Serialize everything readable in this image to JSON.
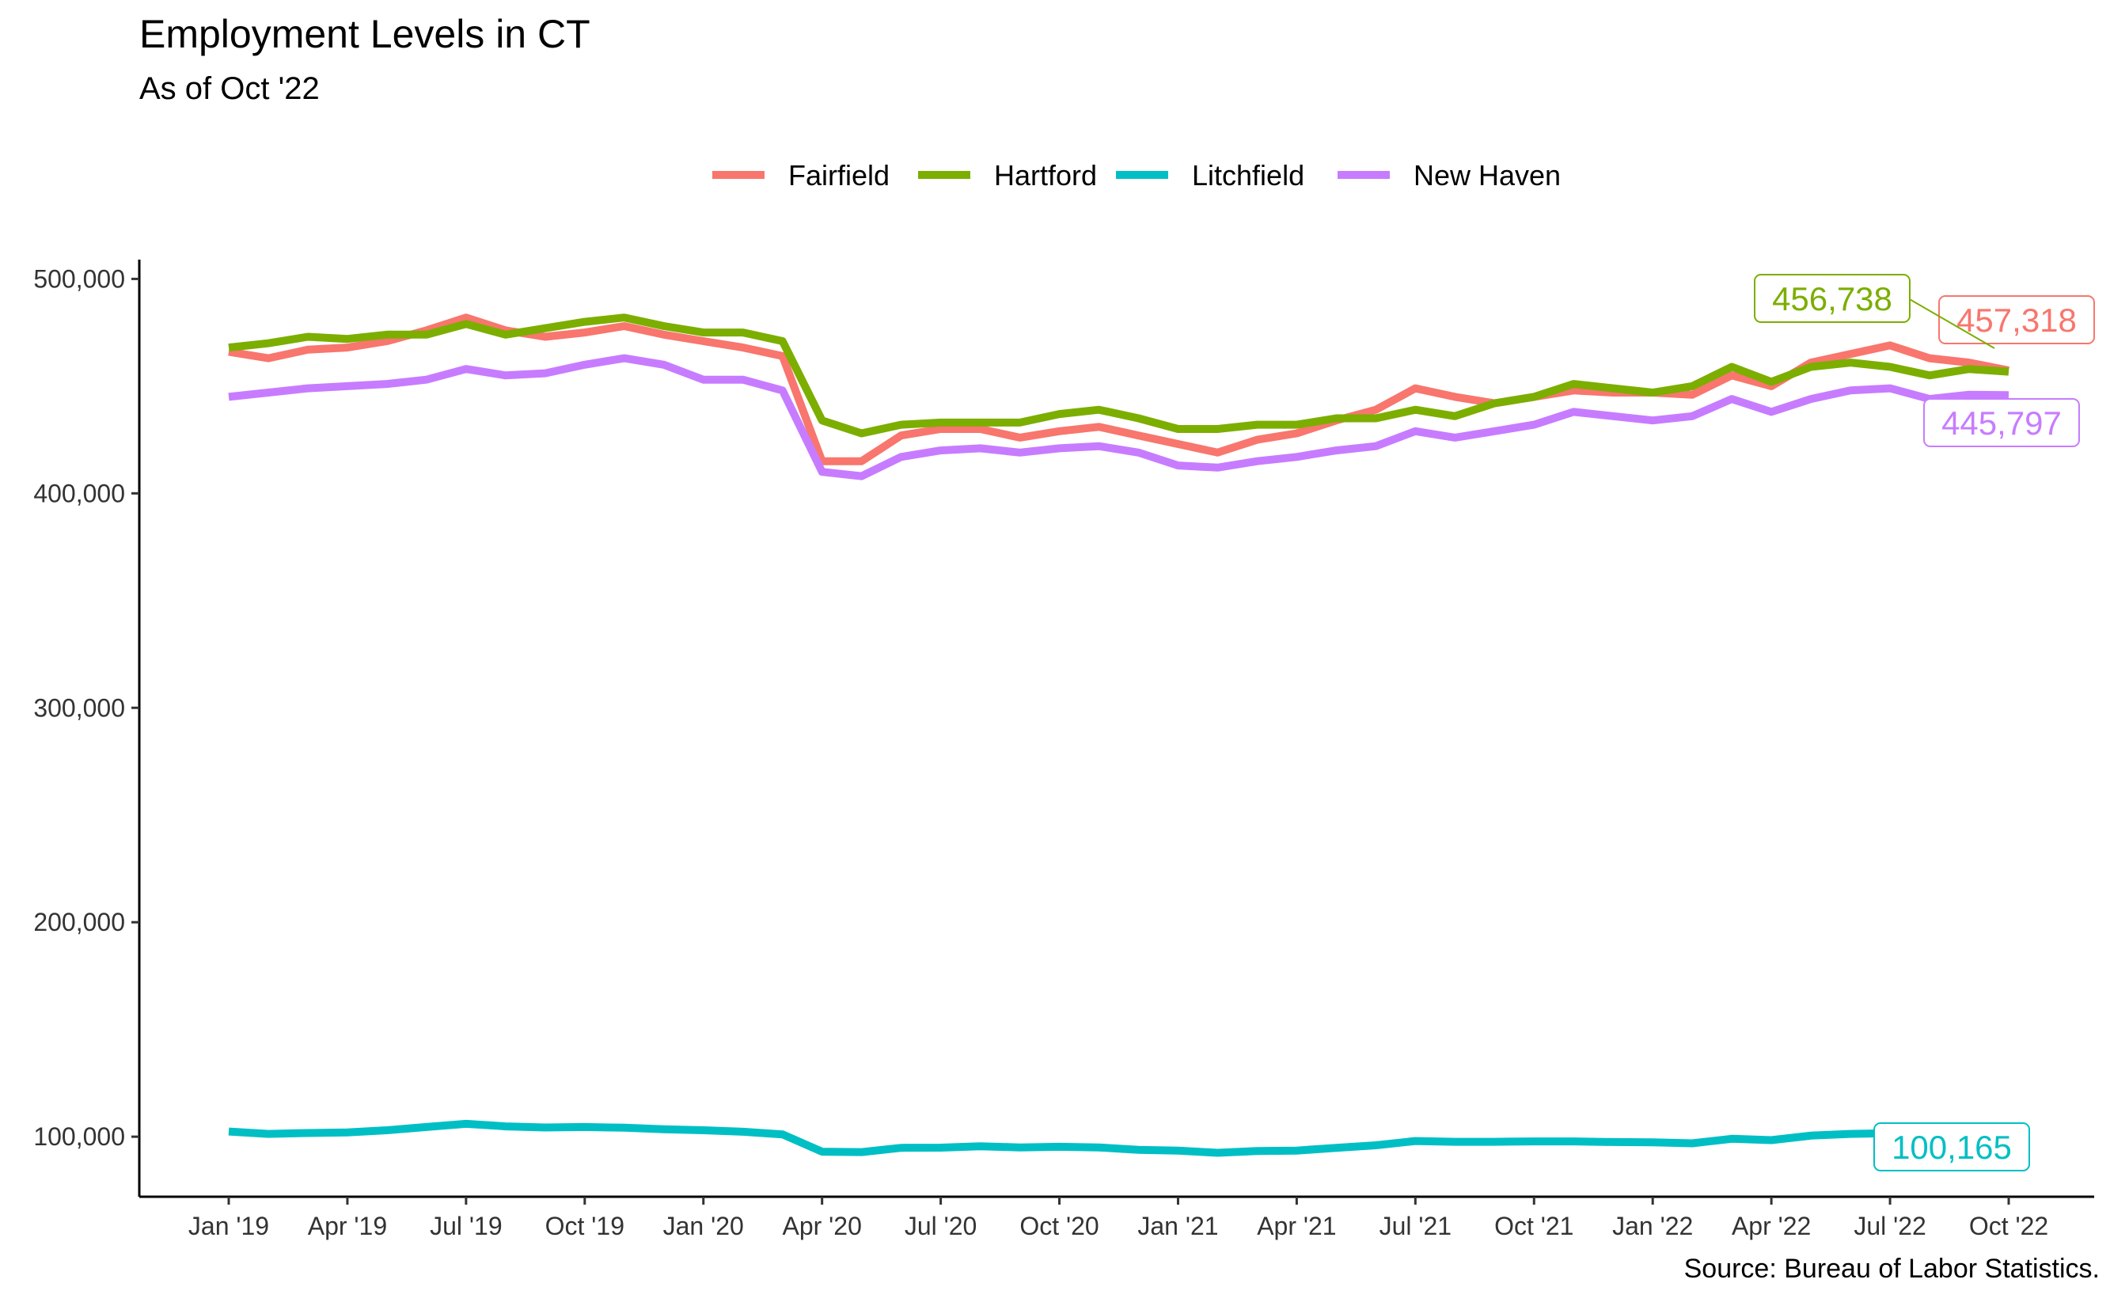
{
  "chart_data": {
    "type": "line",
    "title": "Employment Levels in CT",
    "subtitle": "As of Oct '22",
    "caption": "Source: Bureau of Labor Statistics.",
    "xlabel": "",
    "ylabel": "",
    "ylim": [
      72000,
      509000
    ],
    "y_ticks": [
      100000,
      200000,
      300000,
      400000,
      500000
    ],
    "y_tick_labels": [
      "100,000",
      "200,000",
      "300,000",
      "400,000",
      "500,000"
    ],
    "x_tick_labels": [
      "Jan '19",
      "Apr '19",
      "Jul '19",
      "Oct '19",
      "Jan '20",
      "Apr '20",
      "Jul '20",
      "Oct '20",
      "Jan '21",
      "Apr '21",
      "Jul '21",
      "Oct '21",
      "Jan '22",
      "Apr '22",
      "Jul '22",
      "Oct '22"
    ],
    "x": [
      "Jan '19",
      "Feb '19",
      "Mar '19",
      "Apr '19",
      "May '19",
      "Jun '19",
      "Jul '19",
      "Aug '19",
      "Sep '19",
      "Oct '19",
      "Nov '19",
      "Dec '19",
      "Jan '20",
      "Feb '20",
      "Mar '20",
      "Apr '20",
      "May '20",
      "Jun '20",
      "Jul '20",
      "Aug '20",
      "Sep '20",
      "Oct '20",
      "Nov '20",
      "Dec '20",
      "Jan '21",
      "Feb '21",
      "Mar '21",
      "Apr '21",
      "May '21",
      "Jun '21",
      "Jul '21",
      "Aug '21",
      "Sep '21",
      "Oct '21",
      "Nov '21",
      "Dec '21",
      "Jan '22",
      "Feb '22",
      "Mar '22",
      "Apr '22",
      "May '22",
      "Jun '22",
      "Jul '22",
      "Aug '22",
      "Sep '22",
      "Oct '22"
    ],
    "grid": false,
    "legend_position": "top",
    "series": [
      {
        "name": "Fairfield",
        "color": "#F8766D",
        "values": [
          466000,
          463000,
          467000,
          468000,
          471000,
          476000,
          482000,
          476000,
          473000,
          475000,
          478000,
          474000,
          471000,
          468000,
          464000,
          415000,
          415000,
          427000,
          430000,
          430000,
          426000,
          429000,
          431000,
          427000,
          423000,
          419000,
          425000,
          428000,
          434000,
          439000,
          449000,
          445000,
          442000,
          445000,
          448000,
          447000,
          447000,
          446000,
          455000,
          450000,
          461000,
          465000,
          469000,
          463000,
          461000,
          457318
        ],
        "end_label": "457,318"
      },
      {
        "name": "Hartford",
        "color": "#7CAE00",
        "values": [
          468000,
          470000,
          473000,
          472000,
          474000,
          474000,
          479000,
          474000,
          477000,
          480000,
          482000,
          478000,
          475000,
          475000,
          471000,
          434000,
          428000,
          432000,
          433000,
          433000,
          433000,
          437000,
          439000,
          435000,
          430000,
          430000,
          432000,
          432000,
          435000,
          435000,
          439000,
          436000,
          442000,
          445000,
          451000,
          449000,
          447000,
          450000,
          459000,
          452000,
          459000,
          461000,
          459000,
          455000,
          458000,
          456738
        ],
        "end_label": "456,738"
      },
      {
        "name": "Litchfield",
        "color": "#00BFC4",
        "values": [
          102400,
          101300,
          101700,
          102000,
          103000,
          104500,
          106000,
          104800,
          104300,
          104500,
          104200,
          103500,
          103000,
          102300,
          101100,
          93000,
          92800,
          94800,
          94900,
          95500,
          95000,
          95300,
          95000,
          93900,
          93500,
          92500,
          93300,
          93500,
          94800,
          96000,
          98000,
          97600,
          97600,
          97800,
          97800,
          97500,
          97400,
          96900,
          99000,
          98400,
          100500,
          101300,
          101600,
          100900,
          100600,
          100165
        ],
        "end_label": "100,165"
      },
      {
        "name": "New Haven",
        "color": "#C77CFF",
        "values": [
          445000,
          447000,
          449000,
          450000,
          451000,
          453000,
          458000,
          455000,
          456000,
          460000,
          463000,
          460000,
          453000,
          453000,
          448000,
          410000,
          408000,
          417000,
          420000,
          421000,
          419000,
          421000,
          422000,
          419000,
          413000,
          412000,
          415000,
          417000,
          420000,
          422000,
          429000,
          426000,
          429000,
          432000,
          438000,
          436000,
          434000,
          436000,
          444000,
          438000,
          444000,
          448000,
          449000,
          444000,
          446000,
          445797
        ],
        "end_label": "445,797"
      }
    ]
  }
}
